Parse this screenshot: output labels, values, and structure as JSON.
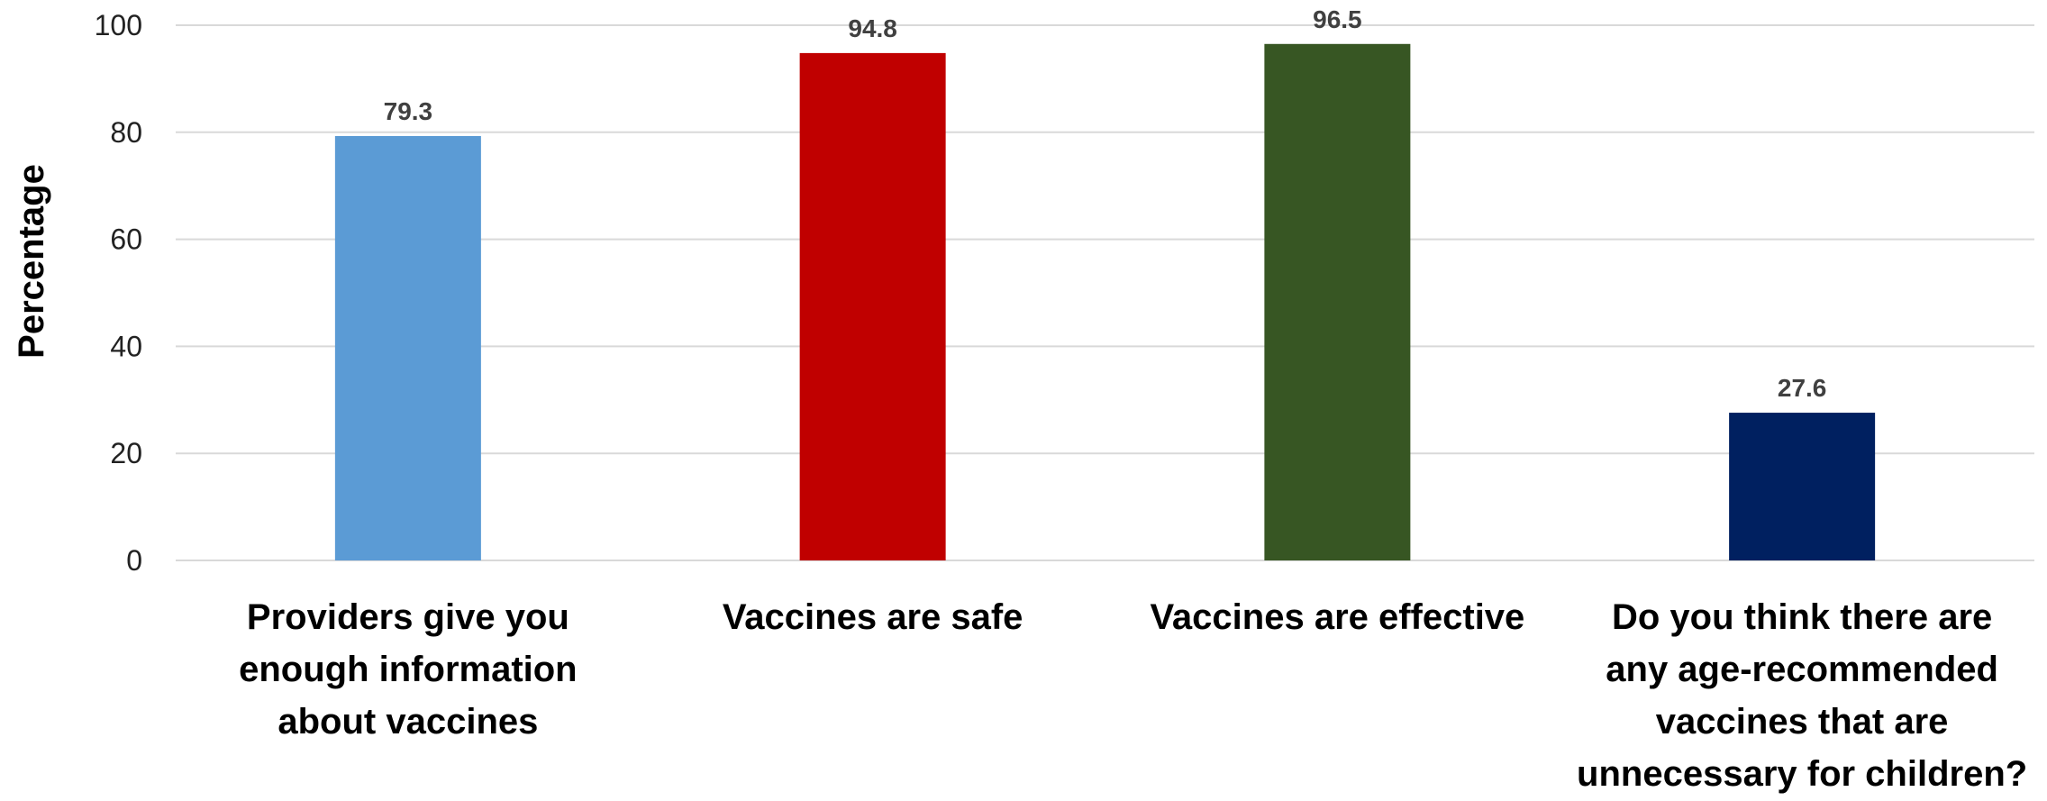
{
  "chart_data": {
    "type": "bar",
    "categories": [
      [
        "Providers give you",
        "enough information",
        "about vaccines"
      ],
      [
        "Vaccines are safe"
      ],
      [
        "Vaccines are effective"
      ],
      [
        "Do you think there are",
        "any age-recommended",
        "vaccines that are",
        "unnecessary for children?"
      ]
    ],
    "values": [
      79.3,
      94.8,
      96.5,
      27.6
    ],
    "data_labels": [
      "79.3",
      "94.8",
      "96.5",
      "27.6"
    ],
    "colors": [
      "#5b9bd5",
      "#c00000",
      "#375623",
      "#002060"
    ],
    "title": "",
    "xlabel": "",
    "ylabel": "Percentage",
    "ylim": [
      0,
      100
    ],
    "yticks": [
      0,
      20,
      40,
      60,
      80,
      100
    ],
    "grid": "horizontal",
    "legend": "none"
  }
}
